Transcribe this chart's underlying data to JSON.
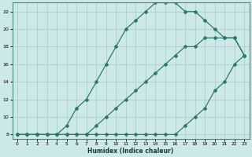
{
  "xlabel": "Humidex (Indice chaleur)",
  "bg_color": "#cce8e8",
  "line_color": "#2d7a70",
  "grid_color": "#aacfcf",
  "xlim": [
    -0.5,
    23.5
  ],
  "ylim": [
    7.5,
    23.0
  ],
  "xticks": [
    0,
    1,
    2,
    3,
    4,
    5,
    6,
    7,
    8,
    9,
    10,
    11,
    12,
    13,
    14,
    15,
    16,
    17,
    18,
    19,
    20,
    21,
    22,
    23
  ],
  "yticks": [
    8,
    10,
    12,
    14,
    16,
    18,
    20,
    22
  ],
  "line1_x": [
    0,
    1,
    2,
    3,
    4,
    5,
    6,
    7,
    8,
    9,
    10,
    11,
    12,
    13,
    14,
    15,
    16,
    17,
    18,
    19,
    20,
    21,
    22,
    23
  ],
  "line1_y": [
    8,
    8,
    8,
    8,
    8,
    8,
    8,
    8,
    8,
    8,
    8,
    8,
    8,
    8,
    8,
    8,
    8,
    9,
    10,
    11,
    13,
    14,
    16,
    17
  ],
  "line2_x": [
    0,
    1,
    2,
    3,
    4,
    5,
    6,
    7,
    8,
    9,
    10,
    11,
    12,
    13,
    14,
    15,
    16,
    17,
    18,
    19,
    20,
    21,
    22,
    23
  ],
  "line2_y": [
    8,
    8,
    8,
    8,
    8,
    8,
    8,
    8,
    9,
    10,
    11,
    12,
    13,
    14,
    15,
    16,
    17,
    18,
    18,
    19,
    19,
    19,
    19,
    17
  ],
  "line3_x": [
    0,
    1,
    2,
    3,
    4,
    5,
    6,
    7,
    8,
    9,
    10,
    11,
    12,
    13,
    14,
    15,
    16,
    17,
    18,
    19,
    20,
    21,
    22,
    23
  ],
  "line3_y": [
    8,
    8,
    8,
    8,
    8,
    9,
    11,
    12,
    14,
    16,
    18,
    20,
    21,
    22,
    23,
    23,
    23,
    22,
    22,
    21,
    20,
    19,
    19,
    17
  ]
}
